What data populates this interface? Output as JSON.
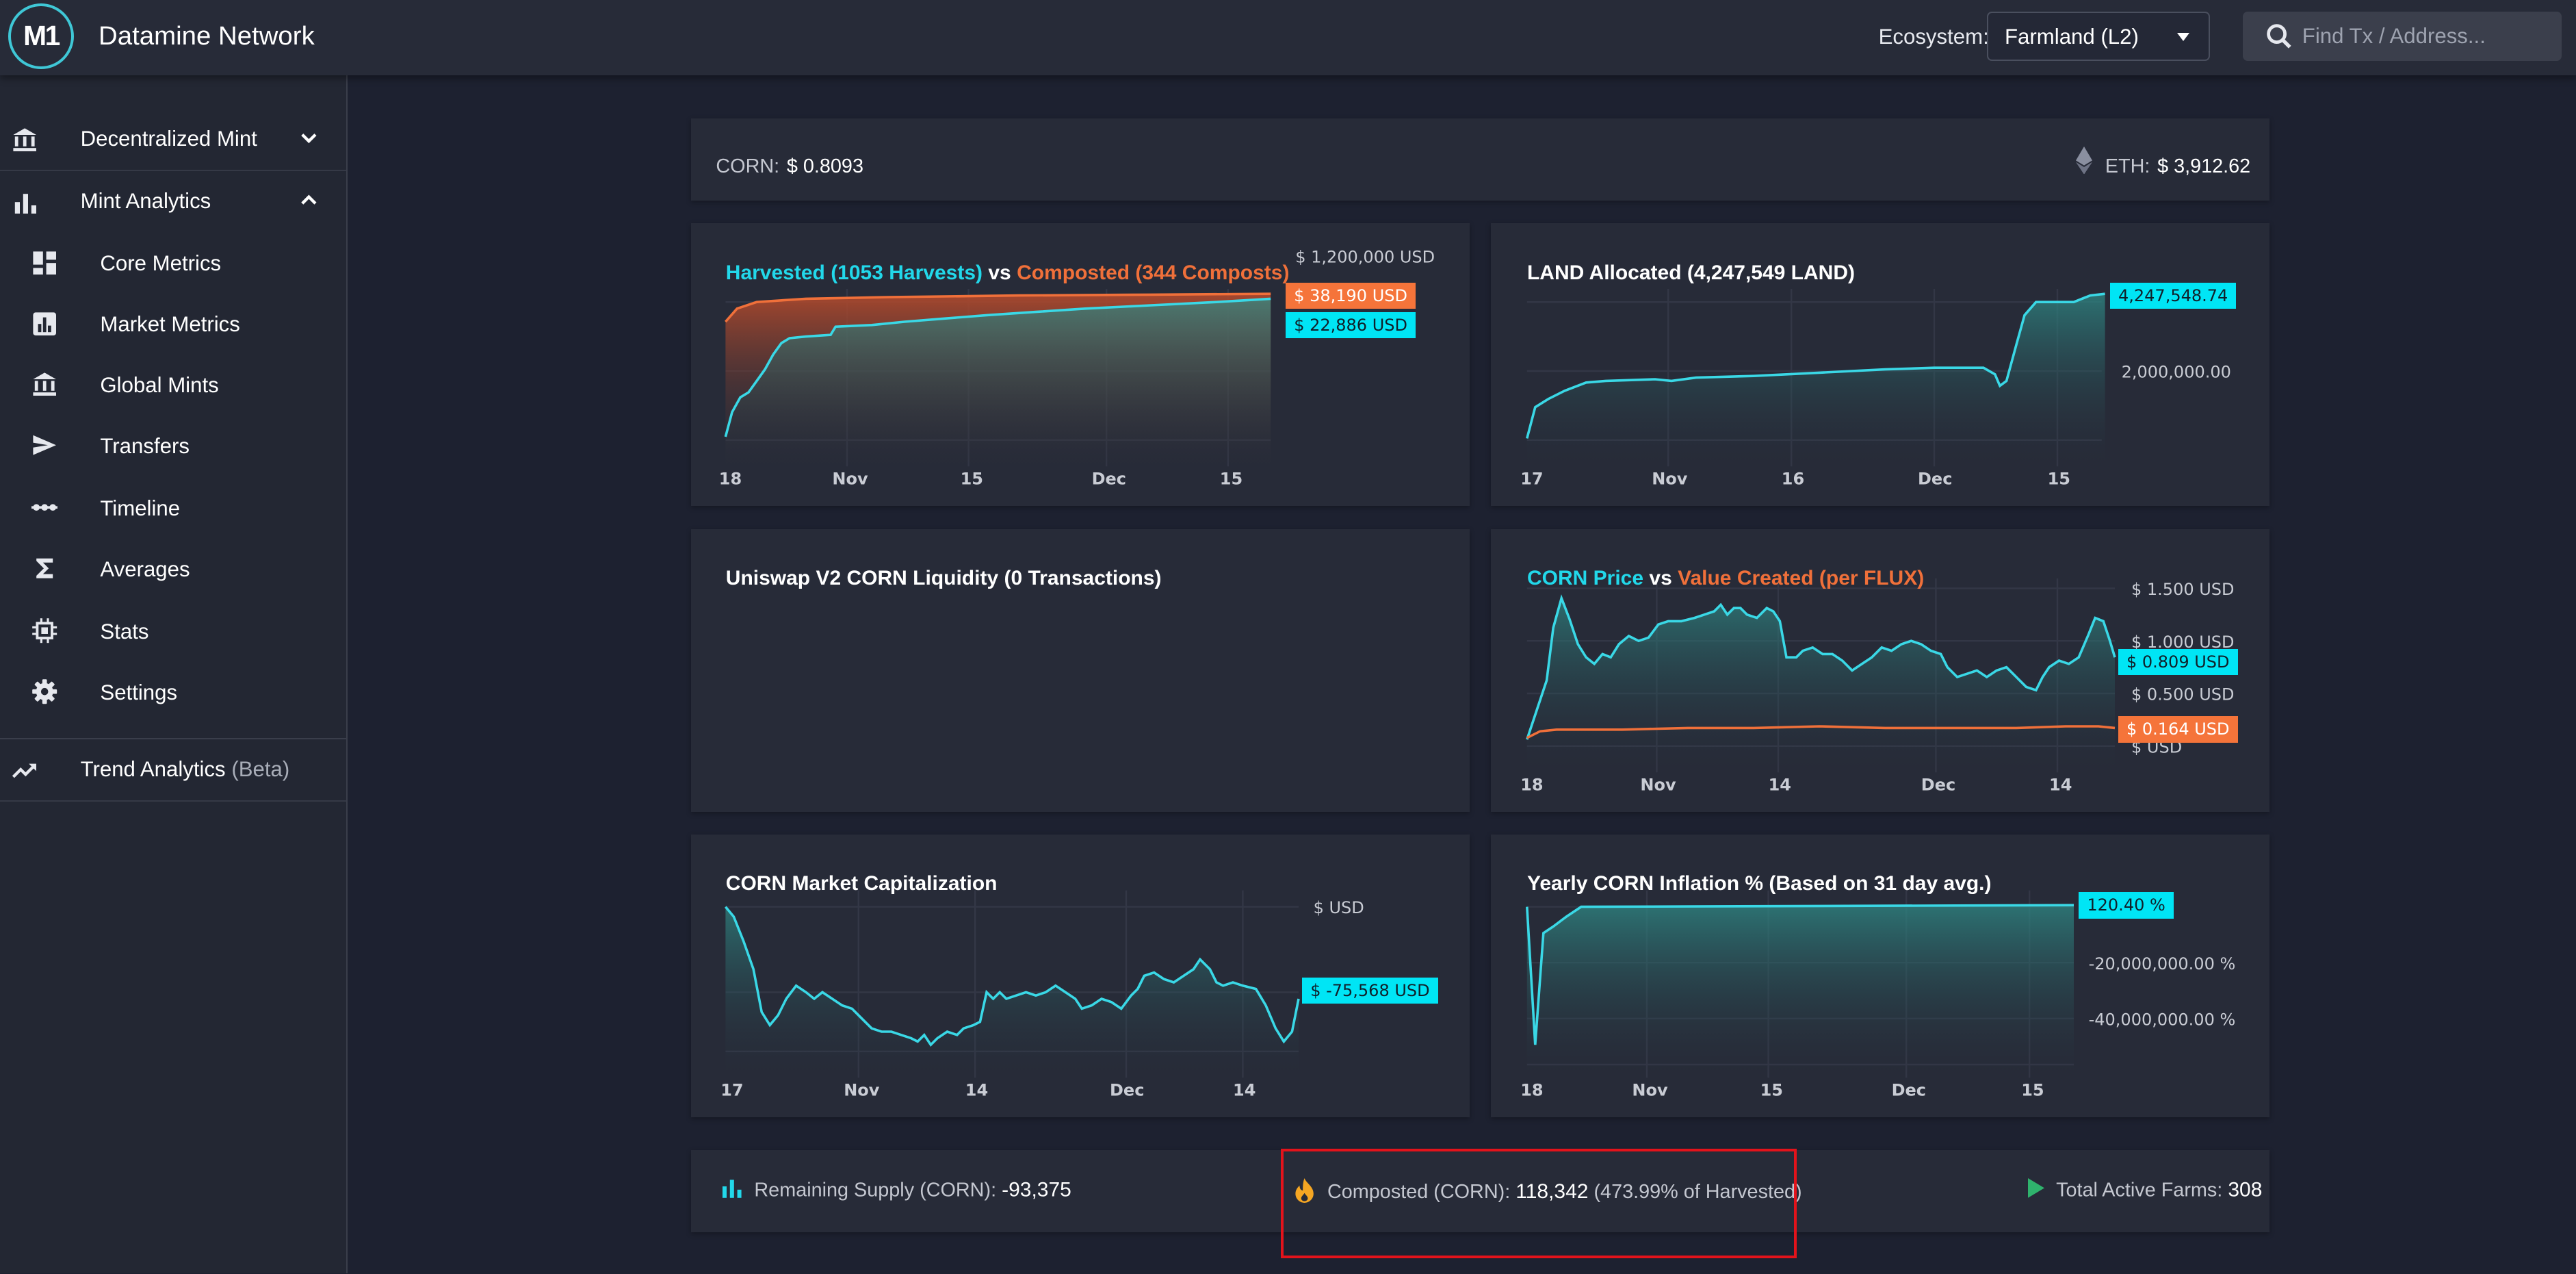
{
  "app": {
    "title": "Datamine Network",
    "logo_text": "M1"
  },
  "header": {
    "ecosystem_label": "Ecosystem:",
    "ecosystem_value": "Farmland (L2)",
    "search_placeholder": "Find Tx / Address..."
  },
  "sidebar": {
    "items": [
      {
        "label": "Decentralized Mint",
        "icon": "bank-icon",
        "expanded": false
      },
      {
        "label": "Mint Analytics",
        "icon": "bar-chart-icon",
        "expanded": true
      },
      {
        "label": "Core Metrics",
        "icon": "dashboard-icon"
      },
      {
        "label": "Market Metrics",
        "icon": "chart-box-icon"
      },
      {
        "label": "Global Mints",
        "icon": "bank-icon"
      },
      {
        "label": "Transfers",
        "icon": "send-icon"
      },
      {
        "label": "Timeline",
        "icon": "timeline-icon"
      },
      {
        "label": "Averages",
        "icon": "sigma-icon"
      },
      {
        "label": "Stats",
        "icon": "chip-icon"
      },
      {
        "label": "Settings",
        "icon": "gear-icon"
      },
      {
        "label": "Trend Analytics",
        "beta": "(Beta)",
        "icon": "trending-up-icon"
      }
    ]
  },
  "prices": {
    "corn_label": "CORN:",
    "corn_value": "$ 0.8093",
    "eth_label": "ETH:",
    "eth_value": "$ 3,912.62"
  },
  "cards": {
    "harvest": {
      "title_a": "Harvested (1053 Harvests)",
      "title_vs": "vs",
      "title_b": "Composted (344 Composts)",
      "tag_a": "$ 38,190 USD",
      "tag_b": "$ 22,886 USD",
      "y_tick": "$ 1,200,000 USD",
      "x_ticks": [
        "18",
        "Nov",
        "15",
        "Dec",
        "15"
      ]
    },
    "land": {
      "title": "LAND Allocated (4,247,549 LAND)",
      "tag": "4,247,548.74",
      "y_tick": "2,000,000.00",
      "x_ticks": [
        "17",
        "Nov",
        "16",
        "Dec",
        "15"
      ]
    },
    "uniswap": {
      "title": "Uniswap V2 CORN Liquidity (0 Transactions)"
    },
    "price": {
      "title_a": "CORN Price",
      "title_vs": "vs",
      "title_b": "Value Created (per FLUX)",
      "tag_a": "$ 0.809 USD",
      "tag_b": "$ 0.164 USD",
      "y_ticks": [
        "$ 1.500 USD",
        "$ 1.000 USD",
        "$ 0.500 USD",
        "$ USD"
      ],
      "x_ticks": [
        "18",
        "Nov",
        "14",
        "Dec",
        "14"
      ]
    },
    "mcap": {
      "title": "CORN Market Capitalization",
      "tag": "$ -75,568 USD",
      "y_tick": "$ USD",
      "x_ticks": [
        "17",
        "Nov",
        "14",
        "Dec",
        "14"
      ]
    },
    "inflation": {
      "title": "Yearly CORN Inflation % (Based on 31 day avg.)",
      "tag": "120.40 %",
      "y_ticks": [
        "-20,000,000.00 %",
        "-40,000,000.00 %"
      ],
      "x_ticks": [
        "18",
        "Nov",
        "15",
        "Dec",
        "15"
      ]
    }
  },
  "footer": {
    "remaining_label": "Remaining Supply (CORN):",
    "remaining_value": "-93,375",
    "composted_label": "Composted (CORN):",
    "composted_value": "118,342",
    "composted_pct": "(473.99% of Harvested)",
    "farms_label": "Total Active Farms:",
    "farms_value": "308"
  },
  "colors": {
    "accent_cyan": "#22d8ea",
    "accent_orange": "#f0703a",
    "highlight_box": "#e3131b"
  }
}
